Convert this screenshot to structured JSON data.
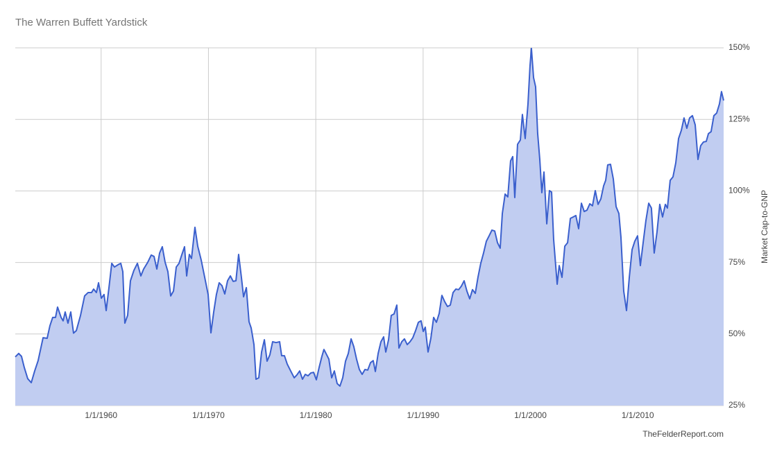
{
  "chart_data": {
    "type": "area",
    "title": "The Warren Buffett Yardstick",
    "y_label": "Market Cap-to-GNP",
    "source": "TheFelderReport.com",
    "grid": true,
    "y_axis_side": "right",
    "xlim": [
      1952,
      2018
    ],
    "ylim": [
      25,
      150
    ],
    "xticks": [
      {
        "value": 1960,
        "label": "1/1/1960"
      },
      {
        "value": 1970,
        "label": "1/1/1970"
      },
      {
        "value": 1980,
        "label": "1/1/1980"
      },
      {
        "value": 1990,
        "label": "1/1/1990"
      },
      {
        "value": 2000,
        "label": "1/1/2000"
      },
      {
        "value": 2010,
        "label": "1/1/2010"
      }
    ],
    "yticks": [
      {
        "value": 25,
        "label": "25%"
      },
      {
        "value": 50,
        "label": "50%"
      },
      {
        "value": 75,
        "label": "75%"
      },
      {
        "value": 100,
        "label": "100%"
      },
      {
        "value": 125,
        "label": "125%"
      },
      {
        "value": 150,
        "label": "150%"
      }
    ],
    "x": [
      1952.0,
      1952.32,
      1952.58,
      1952.84,
      1953.16,
      1953.49,
      1953.81,
      1954.13,
      1954.59,
      1954.97,
      1955.23,
      1955.49,
      1955.75,
      1955.94,
      1956.27,
      1956.46,
      1956.65,
      1956.91,
      1957.17,
      1957.43,
      1957.69,
      1958.08,
      1958.46,
      1958.79,
      1959.11,
      1959.3,
      1959.56,
      1959.76,
      1960.02,
      1960.27,
      1960.47,
      1960.73,
      1960.99,
      1961.24,
      1961.57,
      1961.83,
      1962.02,
      1962.21,
      1962.47,
      1962.73,
      1963.05,
      1963.38,
      1963.7,
      1963.96,
      1964.35,
      1964.67,
      1964.93,
      1965.19,
      1965.45,
      1965.7,
      1965.96,
      1966.22,
      1966.48,
      1966.74,
      1967.0,
      1967.26,
      1967.51,
      1967.77,
      1967.97,
      1968.22,
      1968.42,
      1968.74,
      1969.0,
      1969.32,
      1969.65,
      1969.97,
      1970.23,
      1970.49,
      1970.74,
      1971.0,
      1971.26,
      1971.52,
      1971.78,
      1972.04,
      1972.3,
      1972.56,
      1972.81,
      1973.07,
      1973.27,
      1973.53,
      1973.78,
      1973.98,
      1974.24,
      1974.43,
      1974.69,
      1974.95,
      1975.21,
      1975.46,
      1975.72,
      1975.98,
      1976.3,
      1976.63,
      1976.82,
      1977.08,
      1977.34,
      1977.66,
      1977.99,
      1978.24,
      1978.5,
      1978.76,
      1979.02,
      1979.28,
      1979.54,
      1979.8,
      1980.05,
      1980.31,
      1980.57,
      1980.76,
      1981.02,
      1981.22,
      1981.48,
      1981.73,
      1981.99,
      1982.25,
      1982.51,
      1982.77,
      1983.03,
      1983.29,
      1983.54,
      1983.8,
      1984.06,
      1984.32,
      1984.58,
      1984.84,
      1985.1,
      1985.35,
      1985.55,
      1985.81,
      1986.07,
      1986.32,
      1986.52,
      1986.78,
      1987.03,
      1987.29,
      1987.55,
      1987.75,
      1988.01,
      1988.26,
      1988.52,
      1988.78,
      1989.04,
      1989.3,
      1989.56,
      1989.81,
      1990.01,
      1990.2,
      1990.46,
      1990.72,
      1990.98,
      1991.24,
      1991.5,
      1991.75,
      1992.01,
      1992.27,
      1992.53,
      1992.79,
      1993.05,
      1993.31,
      1993.56,
      1993.82,
      1994.08,
      1994.34,
      1994.6,
      1994.86,
      1995.11,
      1995.37,
      1995.63,
      1995.89,
      1996.15,
      1996.41,
      1996.67,
      1996.93,
      1997.18,
      1997.38,
      1997.64,
      1997.89,
      1998.15,
      1998.35,
      1998.54,
      1998.8,
      1999.06,
      1999.25,
      1999.51,
      1999.77,
      1999.96,
      2000.09,
      2000.29,
      2000.48,
      2000.67,
      2000.87,
      2001.06,
      2001.26,
      2001.52,
      2001.77,
      2001.97,
      2002.16,
      2002.49,
      2002.68,
      2002.94,
      2003.2,
      2003.46,
      2003.72,
      2003.98,
      2004.23,
      2004.49,
      2004.75,
      2005.01,
      2005.27,
      2005.53,
      2005.78,
      2006.04,
      2006.3,
      2006.56,
      2006.82,
      2007.01,
      2007.2,
      2007.46,
      2007.72,
      2007.98,
      2008.24,
      2008.43,
      2008.69,
      2008.95,
      2009.21,
      2009.47,
      2009.72,
      2009.98,
      2010.24,
      2010.5,
      2010.76,
      2011.02,
      2011.27,
      2011.53,
      2011.79,
      2012.05,
      2012.31,
      2012.57,
      2012.76,
      2013.02,
      2013.28,
      2013.54,
      2013.8,
      2014.06,
      2014.31,
      2014.57,
      2014.83,
      2015.09,
      2015.35,
      2015.61,
      2015.86,
      2016.12,
      2016.38,
      2016.58,
      2016.83,
      2017.09,
      2017.35,
      2017.61,
      2017.8,
      2018.0
    ],
    "series": [
      {
        "color": "#3a5fcd",
        "fill": "#c1cdf1",
        "values": [
          42.0,
          43.2,
          42.2,
          38.3,
          34.4,
          33.0,
          37.1,
          40.7,
          48.7,
          48.5,
          52.9,
          55.8,
          55.8,
          59.4,
          55.8,
          54.6,
          57.7,
          53.8,
          57.7,
          50.3,
          51.2,
          56.5,
          63.3,
          64.5,
          64.5,
          65.7,
          64.5,
          67.9,
          62.5,
          63.8,
          58.2,
          66.2,
          74.7,
          73.4,
          74.2,
          74.7,
          71.8,
          53.8,
          56.5,
          68.6,
          72.2,
          74.7,
          70.3,
          72.7,
          75.1,
          77.6,
          77.1,
          72.7,
          78.3,
          80.5,
          75.1,
          71.8,
          63.3,
          65.0,
          73.4,
          74.7,
          77.6,
          80.5,
          70.3,
          77.8,
          76.4,
          87.3,
          80.7,
          75.9,
          69.8,
          63.8,
          50.4,
          57.7,
          63.8,
          67.9,
          66.9,
          64.0,
          68.6,
          70.3,
          68.4,
          68.6,
          77.8,
          69.8,
          63.0,
          66.2,
          54.3,
          52.1,
          46.3,
          34.2,
          34.7,
          43.7,
          48.0,
          40.5,
          42.7,
          47.3,
          47.0,
          47.3,
          42.4,
          42.4,
          39.5,
          37.1,
          34.7,
          35.7,
          37.1,
          34.2,
          35.9,
          35.4,
          36.4,
          36.6,
          34.0,
          38.3,
          42.2,
          44.6,
          42.7,
          41.2,
          34.7,
          37.1,
          32.7,
          31.8,
          34.7,
          40.5,
          43.2,
          48.3,
          45.6,
          41.2,
          37.6,
          35.9,
          37.6,
          37.4,
          40.0,
          40.7,
          36.9,
          43.2,
          47.3,
          49.0,
          43.7,
          48.0,
          56.5,
          57.0,
          60.1,
          45.1,
          47.3,
          48.3,
          46.3,
          47.3,
          48.7,
          51.2,
          54.1,
          54.6,
          50.9,
          52.4,
          43.7,
          48.5,
          55.8,
          54.1,
          57.2,
          63.5,
          61.3,
          59.6,
          60.1,
          64.5,
          65.7,
          65.5,
          66.7,
          68.6,
          65.0,
          62.3,
          65.5,
          64.2,
          69.8,
          74.7,
          78.3,
          82.4,
          84.3,
          86.3,
          86.0,
          81.9,
          80.0,
          92.1,
          98.9,
          97.9,
          110.5,
          112.0,
          97.7,
          116.3,
          117.8,
          126.7,
          118.3,
          130.4,
          143.7,
          149.8,
          139.6,
          136.4,
          120.2,
          111.0,
          99.4,
          106.6,
          88.5,
          100.1,
          99.6,
          83.1,
          67.4,
          73.9,
          69.8,
          80.7,
          81.9,
          90.4,
          90.9,
          91.4,
          86.8,
          95.7,
          92.8,
          93.3,
          95.5,
          94.8,
          100.1,
          95.3,
          97.2,
          101.8,
          103.7,
          109.1,
          109.3,
          104.2,
          94.5,
          92.1,
          83.9,
          65.0,
          58.2,
          69.8,
          79.5,
          82.4,
          84.3,
          73.9,
          81.9,
          89.7,
          95.7,
          94.0,
          78.3,
          85.6,
          95.3,
          90.9,
          95.3,
          94.0,
          103.7,
          104.9,
          109.8,
          118.3,
          121.2,
          125.5,
          121.9,
          125.5,
          126.3,
          123.1,
          111.0,
          115.8,
          117.1,
          117.3,
          120.0,
          120.7,
          126.3,
          127.2,
          130.4,
          134.7,
          131.6
        ]
      }
    ]
  }
}
